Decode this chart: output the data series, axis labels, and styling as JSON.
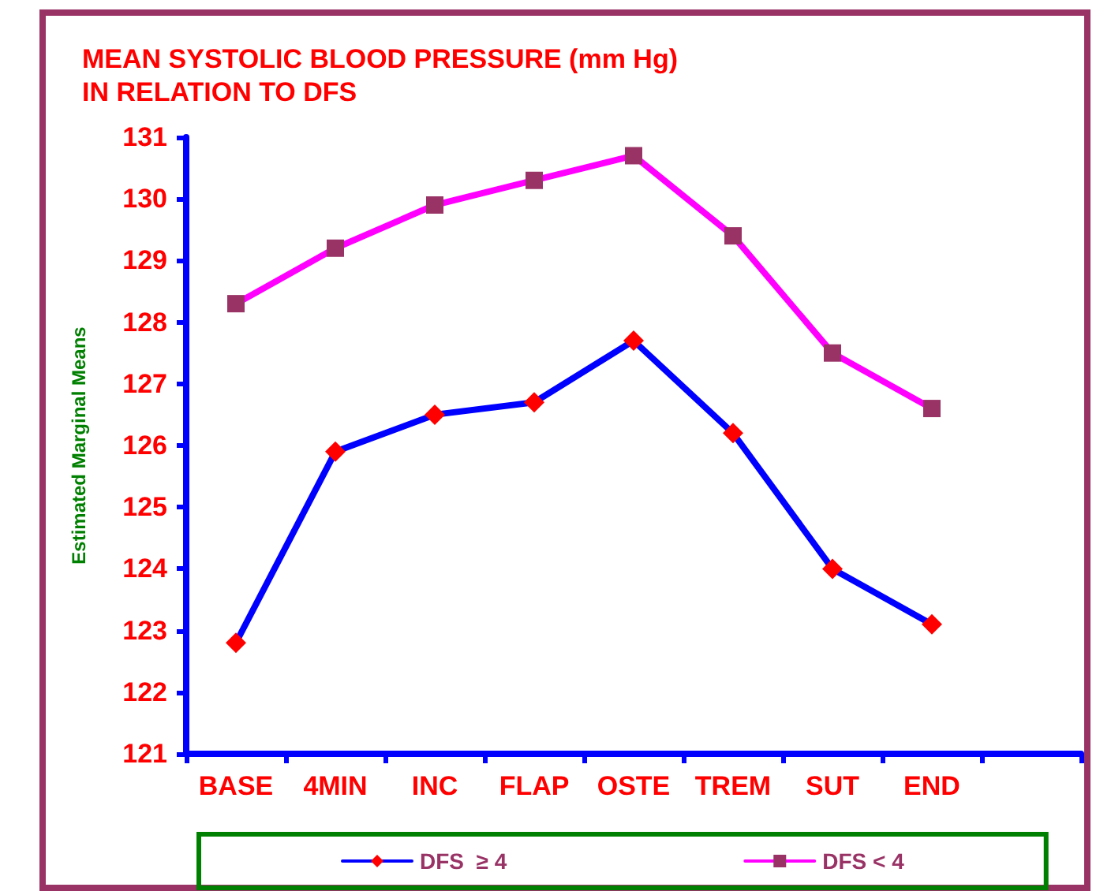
{
  "chart_data": {
    "type": "line",
    "title": "MEAN SYSTOLIC BLOOD PRESSURE (mm Hg)\nIN RELATION TO DFS",
    "ylabel": "Estimated Marginal Means",
    "categories": [
      "BASE",
      "4MIN",
      "INC",
      "FLAP",
      "OSTE",
      "TREM",
      "SUT",
      "END",
      null
    ],
    "series": [
      {
        "name": "DFS  ≥ 4",
        "color": "#0000ff",
        "marker": "diamond",
        "colors": [
          "#ff0000",
          "#ff0000",
          "#ff0000",
          "#ff0000",
          "#ff0000",
          "#ff0000",
          "#ff0000",
          "#ff0000",
          "#ff0000"
        ],
        "values": [
          122.8,
          125.9,
          126.5,
          126.7,
          127.7,
          126.2,
          124.0,
          123.1,
          null
        ]
      },
      {
        "name": "DFS < 4",
        "color": "#ff00ff",
        "marker": "square",
        "colors": [
          "#993366",
          "#993366",
          "#993366",
          "#993366",
          "#993366",
          "#993366",
          "#993366",
          "#993366",
          "#993366"
        ],
        "values": [
          128.3,
          129.2,
          129.9,
          130.3,
          130.7,
          129.4,
          127.5,
          126.6,
          null
        ]
      }
    ],
    "ylim": [
      121,
      131
    ],
    "yticks": [
      121,
      122,
      123,
      124,
      125,
      126,
      127,
      128,
      129,
      130,
      131
    ],
    "grid": false,
    "legend": "bottom",
    "line_style": "solid"
  }
}
